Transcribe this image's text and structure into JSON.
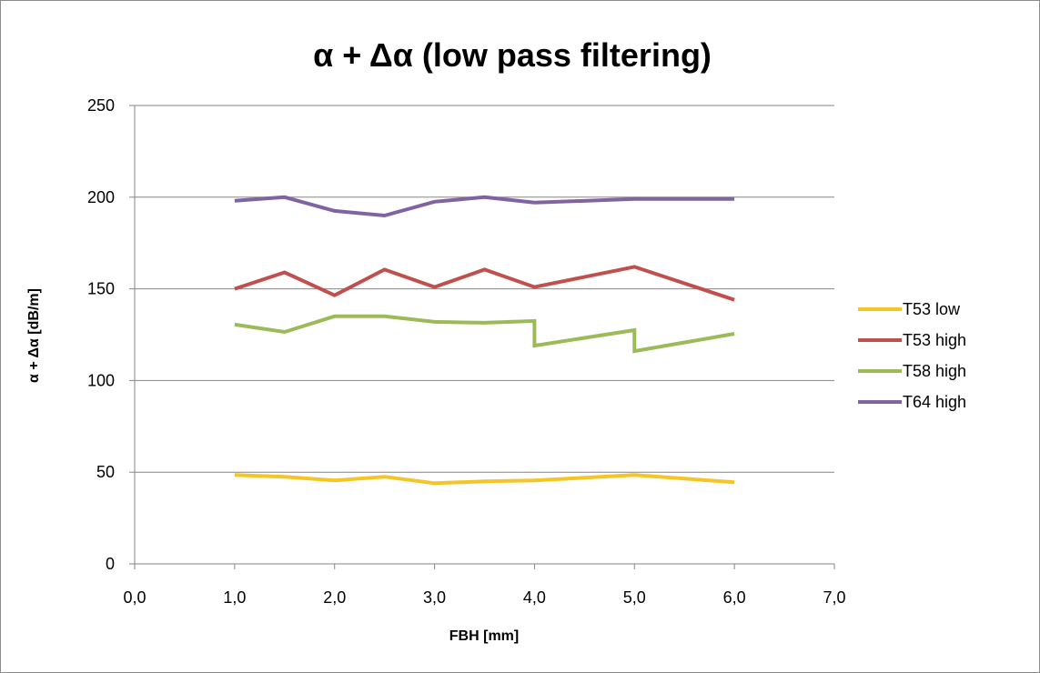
{
  "chart_data": {
    "type": "line",
    "title": "α + Δα (low pass filtering)",
    "xlabel": "FBH [mm]",
    "ylabel": "α + Δα [dB/m]",
    "xlim": [
      0,
      7
    ],
    "ylim": [
      0,
      250
    ],
    "x_ticks": [
      "0,0",
      "1,0",
      "2,0",
      "3,0",
      "4,0",
      "5,0",
      "6,0",
      "7,0"
    ],
    "y_ticks": [
      "0",
      "50",
      "100",
      "150",
      "200",
      "250"
    ],
    "grid": "horizontal",
    "legend_position": "right",
    "series": [
      {
        "name": "T53 low",
        "color": "#f5c525",
        "points": [
          [
            1.0,
            48.5
          ],
          [
            1.5,
            47.5
          ],
          [
            2.0,
            45.5
          ],
          [
            2.5,
            47.5
          ],
          [
            3.0,
            44.0
          ],
          [
            3.5,
            45.0
          ],
          [
            4.0,
            45.5
          ],
          [
            5.0,
            48.5
          ],
          [
            6.0,
            44.5
          ]
        ]
      },
      {
        "name": "T53 high",
        "color": "#c0504d",
        "points": [
          [
            1.0,
            150.0
          ],
          [
            1.5,
            159.0
          ],
          [
            2.0,
            146.5
          ],
          [
            2.5,
            160.5
          ],
          [
            3.0,
            151.0
          ],
          [
            3.5,
            160.5
          ],
          [
            4.0,
            151.0
          ],
          [
            5.0,
            162.0
          ],
          [
            6.0,
            144.0
          ]
        ]
      },
      {
        "name": "T58 high",
        "color": "#9bbb59",
        "points": [
          [
            1.0,
            130.5
          ],
          [
            1.5,
            126.5
          ],
          [
            2.0,
            135.0
          ],
          [
            2.5,
            135.0
          ],
          [
            3.0,
            132.0
          ],
          [
            3.5,
            131.5
          ],
          [
            4.0,
            132.5
          ],
          [
            4.0,
            119.0
          ],
          [
            5.0,
            127.5
          ],
          [
            5.0,
            116.0
          ],
          [
            6.0,
            125.5
          ]
        ]
      },
      {
        "name": "T64 high",
        "color": "#8064a2",
        "points": [
          [
            1.0,
            198.0
          ],
          [
            1.5,
            200.0
          ],
          [
            2.0,
            192.5
          ],
          [
            2.5,
            190.0
          ],
          [
            3.0,
            197.5
          ],
          [
            3.5,
            200.0
          ],
          [
            4.0,
            197.0
          ],
          [
            5.0,
            199.0
          ],
          [
            6.0,
            199.0
          ]
        ]
      }
    ]
  }
}
